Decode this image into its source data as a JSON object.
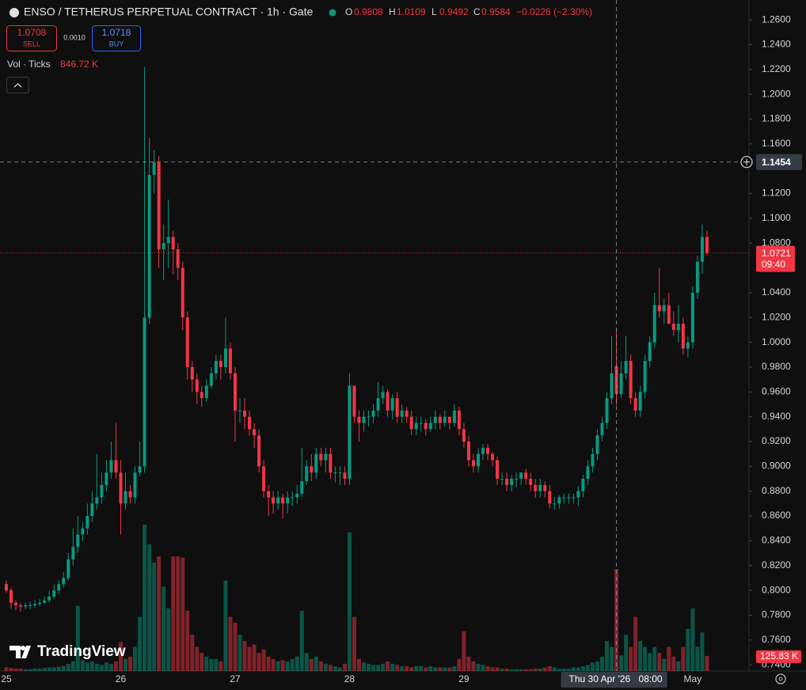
{
  "chart_data": {
    "type": "candlestick",
    "title": "ENSO / TETHERUS PERPETUAL CONTRACT · 1h · Gate",
    "legend": {
      "o": "O",
      "open": 0.9808,
      "h": "H",
      "high": 1.0109,
      "l": "L",
      "low": 0.9492,
      "c": "C",
      "close": 0.9584,
      "change": "−0.0226 (−2.30%)"
    },
    "trade": {
      "sell": 1.0708,
      "sell_label": "SELL",
      "spread": {
        "value": 0.001,
        "label": "0.0010"
      },
      "buy": 1.0718,
      "buy_label": "BUY"
    },
    "volume_title": "Vol · Ticks",
    "volume_legend": {
      "value": 846.72,
      "label": "846.72 K"
    },
    "volume_last": {
      "value": 125.83,
      "label": "125.83 K"
    },
    "crosshair": {
      "price": 1.1454,
      "date": "Thu 30 Apr '26",
      "time": "08:00"
    },
    "last_price": 1.0721,
    "countdown": "09:40",
    "logo": "TradingView",
    "up_color": "#089981",
    "down_color": "#f23645",
    "grid": false,
    "ylim": [
      0.735,
      1.276
    ],
    "volume_lim": [
      0,
      5564
    ],
    "yticks": [
      {
        "value": 0.74,
        "label": "0.7400"
      },
      {
        "value": 0.76,
        "label": "0.7600"
      },
      {
        "value": 0.78,
        "label": "0.7800"
      },
      {
        "value": 0.8,
        "label": "0.8000"
      },
      {
        "value": 0.82,
        "label": "0.8200"
      },
      {
        "value": 0.84,
        "label": "0.8400"
      },
      {
        "value": 0.86,
        "label": "0.8600"
      },
      {
        "value": 0.88,
        "label": "0.8800"
      },
      {
        "value": 0.9,
        "label": "0.9000"
      },
      {
        "value": 0.92,
        "label": "0.9200"
      },
      {
        "value": 0.94,
        "label": "0.9400"
      },
      {
        "value": 0.96,
        "label": "0.9600"
      },
      {
        "value": 0.98,
        "label": "0.9800"
      },
      {
        "value": 1,
        "label": "1.0000"
      },
      {
        "value": 1.02,
        "label": "1.0200"
      },
      {
        "value": 1.04,
        "label": "1.0400"
      },
      {
        "value": 1.08,
        "label": "1.0800"
      },
      {
        "value": 1.1,
        "label": "1.1000"
      },
      {
        "value": 1.12,
        "label": "1.1200"
      },
      {
        "value": 1.16,
        "label": "1.1600"
      },
      {
        "value": 1.18,
        "label": "1.1800"
      },
      {
        "value": 1.2,
        "label": "1.2000"
      },
      {
        "value": 1.22,
        "label": "1.2200"
      },
      {
        "value": 1.24,
        "label": "1.2400"
      },
      {
        "value": 1.26,
        "label": "1.2600"
      }
    ],
    "categories": [
      "25",
      null,
      null,
      null,
      null,
      null,
      null,
      null,
      null,
      null,
      null,
      null,
      null,
      null,
      null,
      null,
      null,
      null,
      null,
      null,
      null,
      null,
      null,
      null,
      "26",
      null,
      null,
      null,
      null,
      null,
      null,
      null,
      null,
      null,
      null,
      null,
      null,
      null,
      null,
      null,
      null,
      null,
      null,
      null,
      null,
      null,
      null,
      null,
      "27",
      null,
      null,
      null,
      null,
      null,
      null,
      null,
      null,
      null,
      null,
      null,
      null,
      null,
      null,
      null,
      null,
      null,
      null,
      null,
      null,
      null,
      null,
      null,
      "28",
      null,
      null,
      null,
      null,
      null,
      null,
      null,
      null,
      null,
      null,
      null,
      null,
      null,
      null,
      null,
      null,
      null,
      null,
      null,
      null,
      null,
      null,
      null,
      "29",
      null,
      null,
      null,
      null,
      null,
      null,
      null,
      null,
      null,
      null,
      null,
      null,
      null,
      null,
      null,
      null,
      null,
      null,
      null,
      null,
      null,
      null,
      null,
      null,
      null,
      null,
      null,
      null,
      null,
      null,
      null,
      null,
      null,
      null,
      null,
      null,
      null,
      null,
      null,
      null,
      null,
      null,
      null,
      null,
      null,
      null,
      null,
      "May",
      null,
      null,
      null
    ],
    "crosshair_index": 128,
    "open": [
      0.805,
      0.8,
      0.79,
      0.788,
      0.787,
      0.788,
      0.788,
      0.789,
      0.79,
      0.792,
      0.795,
      0.8,
      0.805,
      0.81,
      0.825,
      0.835,
      0.845,
      0.85,
      0.86,
      0.87,
      0.875,
      0.885,
      0.895,
      0.905,
      0.895,
      0.87,
      0.88,
      0.875,
      0.895,
      0.9,
      1.02,
      1.135,
      1.145,
      1.075,
      1.08,
      1.085,
      1.075,
      1.06,
      1.02,
      0.98,
      0.97,
      0.96,
      0.955,
      0.965,
      0.975,
      0.985,
      0.98,
      0.995,
      0.975,
      0.945,
      0.945,
      0.94,
      0.93,
      0.925,
      0.9,
      0.88,
      0.875,
      0.87,
      0.875,
      0.87,
      0.875,
      0.875,
      0.878,
      0.888,
      0.9,
      0.895,
      0.91,
      0.905,
      0.91,
      0.895,
      0.895,
      0.895,
      0.89,
      0.965,
      0.94,
      0.935,
      0.94,
      0.94,
      0.945,
      0.955,
      0.96,
      0.945,
      0.955,
      0.94,
      0.945,
      0.94,
      0.93,
      0.935,
      0.935,
      0.93,
      0.935,
      0.94,
      0.935,
      0.94,
      0.935,
      0.945,
      0.93,
      0.92,
      0.905,
      0.9,
      0.91,
      0.915,
      0.91,
      0.905,
      0.89,
      0.89,
      0.885,
      0.89,
      0.89,
      0.895,
      0.89,
      0.885,
      0.88,
      0.885,
      0.88,
      0.87,
      0.87,
      0.875,
      0.875,
      0.875,
      0.875,
      0.88,
      0.89,
      0.9,
      0.91,
      0.925,
      0.935,
      0.955,
      0.9808,
      0.9584,
      0.975,
      0.985,
      0.955,
      0.945,
      0.96,
      0.985,
      1.0,
      1.03,
      1.025,
      1.03,
      1.015,
      1.01,
      1.015,
      0.995,
      1.0,
      1.04,
      1.065,
      1.085
    ],
    "high": [
      0.808,
      0.802,
      0.792,
      0.79,
      0.79,
      0.791,
      0.792,
      0.793,
      0.795,
      0.8,
      0.805,
      0.808,
      0.815,
      0.83,
      0.85,
      0.86,
      0.855,
      0.87,
      0.88,
      0.91,
      0.895,
      0.905,
      0.92,
      0.935,
      0.905,
      0.895,
      0.885,
      0.9,
      0.92,
      1.222,
      1.165,
      1.155,
      1.15,
      1.095,
      1.115,
      1.09,
      1.08,
      1.065,
      1.025,
      0.985,
      0.975,
      0.965,
      0.97,
      0.98,
      0.99,
      0.99,
      1.02,
      1.0,
      0.98,
      0.955,
      0.955,
      0.945,
      0.935,
      0.93,
      0.905,
      0.885,
      0.88,
      0.88,
      0.878,
      0.88,
      0.88,
      0.885,
      0.915,
      0.905,
      0.91,
      0.915,
      0.915,
      0.915,
      0.915,
      0.9,
      0.9,
      0.9,
      0.975,
      0.965,
      0.945,
      0.945,
      0.945,
      0.95,
      0.968,
      0.965,
      0.962,
      0.958,
      0.96,
      0.95,
      0.948,
      0.945,
      0.94,
      0.94,
      0.938,
      0.94,
      0.945,
      0.942,
      0.945,
      0.94,
      0.95,
      0.948,
      0.935,
      0.925,
      0.91,
      0.915,
      0.918,
      0.918,
      0.912,
      0.908,
      0.895,
      0.895,
      0.893,
      0.895,
      0.895,
      0.898,
      0.895,
      0.89,
      0.89,
      0.888,
      0.885,
      0.875,
      0.877,
      0.878,
      0.878,
      0.878,
      0.884,
      0.893,
      0.905,
      0.915,
      0.93,
      0.94,
      0.96,
      1.005,
      1.0109,
      0.985,
      1.005,
      0.99,
      0.96,
      0.965,
      0.99,
      1.005,
      1.04,
      1.06,
      1.035,
      1.04,
      1.025,
      1.03,
      1.02,
      1.005,
      1.045,
      1.07,
      1.095,
      1.09
    ],
    "low": [
      0.798,
      0.785,
      0.784,
      0.783,
      0.785,
      0.785,
      0.786,
      0.787,
      0.789,
      0.79,
      0.793,
      0.797,
      0.802,
      0.808,
      0.82,
      0.83,
      0.84,
      0.845,
      0.855,
      0.865,
      0.87,
      0.88,
      0.89,
      0.89,
      0.845,
      0.865,
      0.87,
      0.87,
      0.892,
      0.895,
      1.015,
      1.12,
      1.06,
      1.05,
      1.06,
      1.055,
      1.05,
      1.01,
      0.97,
      0.96,
      0.95,
      0.948,
      0.952,
      0.963,
      0.97,
      0.97,
      0.975,
      0.97,
      0.92,
      0.935,
      0.93,
      0.925,
      0.915,
      0.895,
      0.875,
      0.86,
      0.862,
      0.865,
      0.858,
      0.862,
      0.868,
      0.87,
      0.875,
      0.885,
      0.888,
      0.89,
      0.9,
      0.895,
      0.89,
      0.887,
      0.885,
      0.885,
      0.885,
      0.935,
      0.92,
      0.928,
      0.932,
      0.935,
      0.94,
      0.95,
      0.94,
      0.938,
      0.935,
      0.935,
      0.935,
      0.925,
      0.925,
      0.928,
      0.925,
      0.928,
      0.93,
      0.93,
      0.932,
      0.93,
      0.932,
      0.925,
      0.915,
      0.9,
      0.895,
      0.895,
      0.905,
      0.905,
      0.9,
      0.885,
      0.885,
      0.88,
      0.88,
      0.883,
      0.885,
      0.885,
      0.88,
      0.875,
      0.875,
      0.875,
      0.866,
      0.865,
      0.866,
      0.87,
      0.87,
      0.87,
      0.868,
      0.875,
      0.885,
      0.895,
      0.905,
      0.92,
      0.93,
      0.95,
      0.9492,
      0.955,
      0.97,
      0.95,
      0.94,
      0.94,
      0.955,
      0.98,
      0.995,
      1.02,
      1.015,
      1.015,
      1.005,
      1.0,
      0.99,
      0.988,
      0.995,
      1.035,
      1.055,
      1.07
    ],
    "close": [
      0.8,
      0.79,
      0.788,
      0.787,
      0.788,
      0.788,
      0.789,
      0.79,
      0.792,
      0.795,
      0.8,
      0.805,
      0.81,
      0.825,
      0.835,
      0.845,
      0.85,
      0.86,
      0.87,
      0.875,
      0.885,
      0.895,
      0.905,
      0.895,
      0.87,
      0.88,
      0.875,
      0.895,
      0.9,
      1.02,
      1.135,
      1.145,
      1.075,
      1.08,
      1.085,
      1.075,
      1.06,
      1.02,
      0.98,
      0.97,
      0.96,
      0.955,
      0.965,
      0.975,
      0.985,
      0.98,
      0.995,
      0.975,
      0.945,
      0.945,
      0.94,
      0.93,
      0.925,
      0.9,
      0.88,
      0.875,
      0.87,
      0.875,
      0.87,
      0.875,
      0.875,
      0.878,
      0.888,
      0.9,
      0.895,
      0.91,
      0.905,
      0.91,
      0.895,
      0.895,
      0.895,
      0.89,
      0.965,
      0.94,
      0.935,
      0.94,
      0.94,
      0.945,
      0.955,
      0.96,
      0.945,
      0.955,
      0.94,
      0.945,
      0.94,
      0.93,
      0.935,
      0.935,
      0.93,
      0.935,
      0.94,
      0.935,
      0.94,
      0.935,
      0.945,
      0.93,
      0.92,
      0.905,
      0.9,
      0.91,
      0.915,
      0.91,
      0.905,
      0.89,
      0.89,
      0.885,
      0.89,
      0.89,
      0.895,
      0.89,
      0.885,
      0.88,
      0.885,
      0.88,
      0.87,
      0.87,
      0.875,
      0.875,
      0.875,
      0.875,
      0.88,
      0.89,
      0.9,
      0.91,
      0.925,
      0.935,
      0.955,
      0.975,
      0.9584,
      0.975,
      0.985,
      0.955,
      0.945,
      0.96,
      0.985,
      1.0,
      1.03,
      1.025,
      1.03,
      1.015,
      1.01,
      1.015,
      0.995,
      1.0,
      1.04,
      1.065,
      1.085,
      1.0721
    ],
    "volume": [
      30,
      25,
      20,
      20,
      15,
      15,
      20,
      20,
      25,
      30,
      30,
      35,
      40,
      60,
      80,
      540,
      90,
      70,
      80,
      60,
      50,
      70,
      60,
      80,
      240,
      100,
      120,
      200,
      450,
      1214,
      1050,
      900,
      950,
      700,
      520,
      950,
      950,
      940,
      500,
      300,
      200,
      150,
      120,
      100,
      100,
      80,
      750,
      450,
      400,
      300,
      250,
      200,
      220,
      150,
      180,
      120,
      100,
      80,
      90,
      80,
      100,
      120,
      500,
      150,
      100,
      120,
      80,
      60,
      50,
      40,
      30,
      60,
      1150,
      450,
      100,
      70,
      60,
      50,
      50,
      60,
      80,
      60,
      50,
      40,
      40,
      30,
      40,
      40,
      30,
      40,
      30,
      30,
      30,
      30,
      40,
      100,
      330,
      120,
      80,
      60,
      50,
      40,
      30,
      30,
      20,
      20,
      15,
      15,
      15,
      15,
      15,
      20,
      20,
      30,
      40,
      30,
      20,
      20,
      20,
      30,
      30,
      40,
      50,
      70,
      80,
      120,
      250,
      200,
      846.72,
      130,
      300,
      200,
      450,
      250,
      200,
      150,
      200,
      150,
      100,
      200,
      120,
      80,
      200,
      350,
      520,
      200,
      320,
      125.83
    ]
  }
}
